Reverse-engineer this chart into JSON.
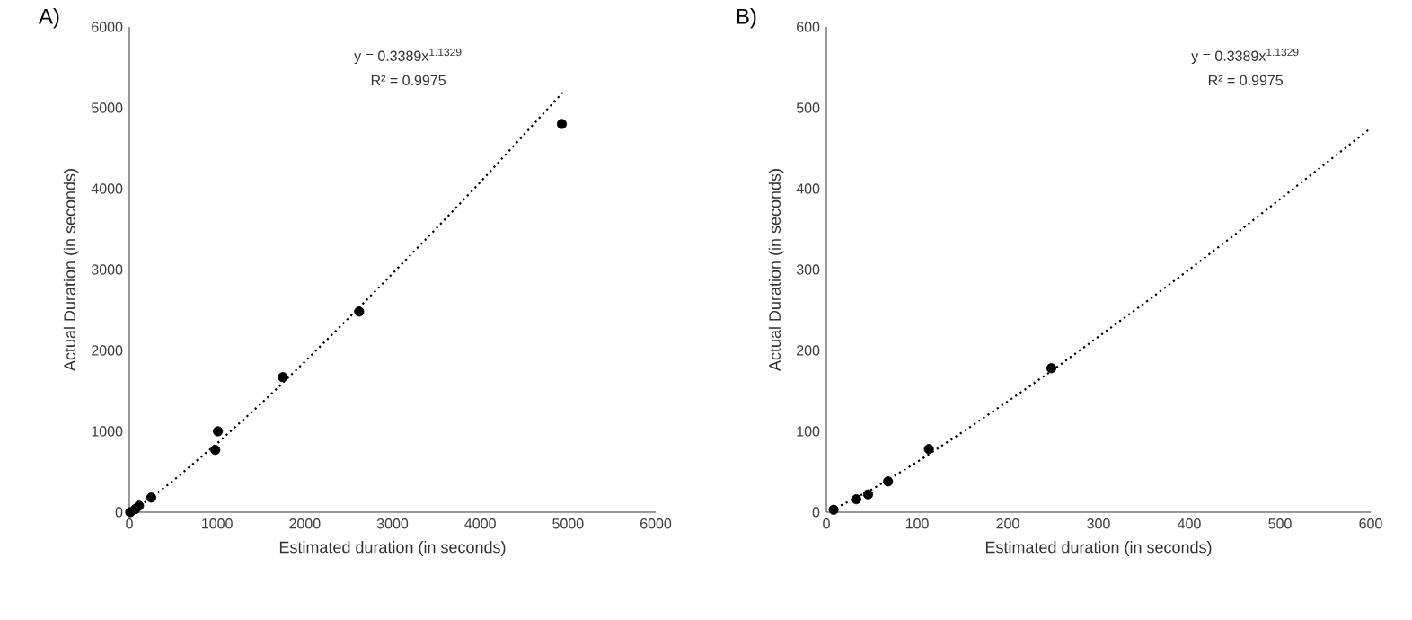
{
  "chart_data": [
    {
      "type": "scatter",
      "title": "A)",
      "xlabel": "Estimated duration (in seconds)",
      "ylabel": "Actual Duration (in seconds)",
      "xlim": [
        0,
        6000
      ],
      "ylim": [
        0,
        6000
      ],
      "xticks": [
        0,
        1000,
        2000,
        3000,
        4000,
        5000,
        6000
      ],
      "yticks": [
        0,
        1000,
        2000,
        3000,
        4000,
        5000,
        6000
      ],
      "annotations": [
        "y = 0.3389x$^{1.1329}$",
        "R² = 0.9975"
      ],
      "series": [
        {
          "color": "#000000",
          "marker": "circle",
          "x": [
            10,
            30,
            50,
            70,
            110,
            250,
            980,
            1010,
            1750,
            2620,
            4930
          ],
          "values": [
            0,
            null,
            null,
            40,
            80,
            180,
            770,
            1000,
            1670,
            2480,
            4800
          ]
        },
        {
          "type": "line",
          "color": "#000000",
          "marker": "none",
          "line_style": "dotted",
          "x": [
            10,
            100,
            250,
            500,
            1000,
            1500,
            2000,
            2500,
            3000,
            3500,
            4000,
            4500,
            4940
          ],
          "values": [
            10,
            60,
            180,
            390,
            850,
            1340,
            1860,
            2400,
            2950,
            3510,
            4080,
            4670,
            5190
          ]
        }
      ]
    },
    {
      "type": "scatter",
      "title": "B)",
      "xlabel": "Estimated duration (in seconds)",
      "ylabel": "Actual Duration (in seconds)",
      "xlim": [
        0,
        600
      ],
      "ylim": [
        0,
        600
      ],
      "xticks": [
        0,
        100,
        200,
        300,
        400,
        500,
        600
      ],
      "yticks": [
        0,
        100,
        200,
        300,
        400,
        500,
        600
      ],
      "annotations": [
        "y = 0.3389x$^{1.1329}$",
        "R² = 0.9975"
      ],
      "series": [
        {
          "color": "#000000",
          "marker": "circle",
          "x": [
            8,
            33,
            46,
            68,
            113,
            248
          ],
          "values": [
            3,
            16,
            22,
            38,
            78,
            178
          ]
        },
        {
          "type": "line",
          "color": "#000000",
          "marker": "none",
          "line_style": "dotted",
          "x": [
            5,
            50,
            100,
            150,
            200,
            250,
            300,
            350,
            400,
            450,
            500,
            550,
            600
          ],
          "values": [
            2,
            28,
            62,
            99,
            137,
            176,
            217,
            258,
            300,
            343,
            387,
            431,
            475
          ]
        }
      ]
    }
  ]
}
